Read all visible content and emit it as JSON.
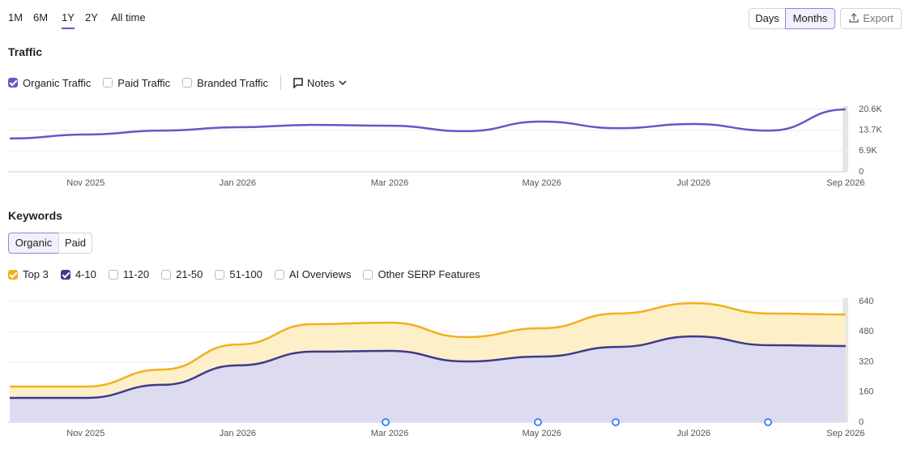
{
  "period_tabs": [
    "1M",
    "6M",
    "1Y",
    "2Y",
    "All time"
  ],
  "granularity": [
    "Days",
    "Months"
  ],
  "export": "Export",
  "traffic": {
    "heading": "Traffic",
    "other_filters": [
      "Paid Traffic",
      "Branded Traffic"
    ],
    "notes": "Notes"
  },
  "keywords": {
    "heading": "Keywords",
    "tabs": [
      "Organic",
      "Paid"
    ],
    "other_filters": [
      "11-20",
      "21-50",
      "51-100",
      "AI Overviews",
      "Other SERP Features"
    ]
  },
  "chart_data": [
    {
      "type": "line",
      "categories": [
        null,
        "Nov 2025",
        null,
        "Jan 2026",
        null,
        "Mar 2026",
        null,
        "May 2026",
        null,
        "Jul 2026",
        null,
        "Sep 2026"
      ],
      "series": [
        {
          "name": "Organic Traffic",
          "color": "#6059c9",
          "values": [
            11000,
            12300,
            13600,
            14700,
            15500,
            15200,
            13400,
            16600,
            14400,
            15800,
            13600,
            20600
          ]
        }
      ],
      "ylim": [
        0,
        20600
      ],
      "yticks": [
        0,
        {
          "value": 6900,
          "label": "6.9K"
        },
        {
          "value": 13700,
          "label": "13.7K"
        },
        {
          "value": 20600,
          "label": "20.6K"
        }
      ],
      "grid": true
    },
    {
      "type": "area",
      "stacked": true,
      "categories": [
        null,
        "Nov 2025",
        null,
        "Jan 2026",
        null,
        "Mar 2026",
        null,
        "May 2026",
        null,
        "Jul 2026",
        null,
        "Sep 2026"
      ],
      "series": [
        {
          "name": "4-10",
          "color": "#3f3a8c",
          "values": [
            129,
            129,
            198,
            301,
            374,
            378,
            322,
            348,
            399,
            455,
            408,
            404
          ]
        },
        {
          "name": "Top 3",
          "color": "#f2b01e",
          "values": [
            60,
            60,
            81,
            111,
            146,
            150,
            129,
            150,
            177,
            176,
            168,
            167
          ]
        }
      ],
      "ylim": [
        0,
        640
      ],
      "yticks": [
        0,
        160,
        320,
        480,
        640
      ],
      "grid": true
    }
  ]
}
